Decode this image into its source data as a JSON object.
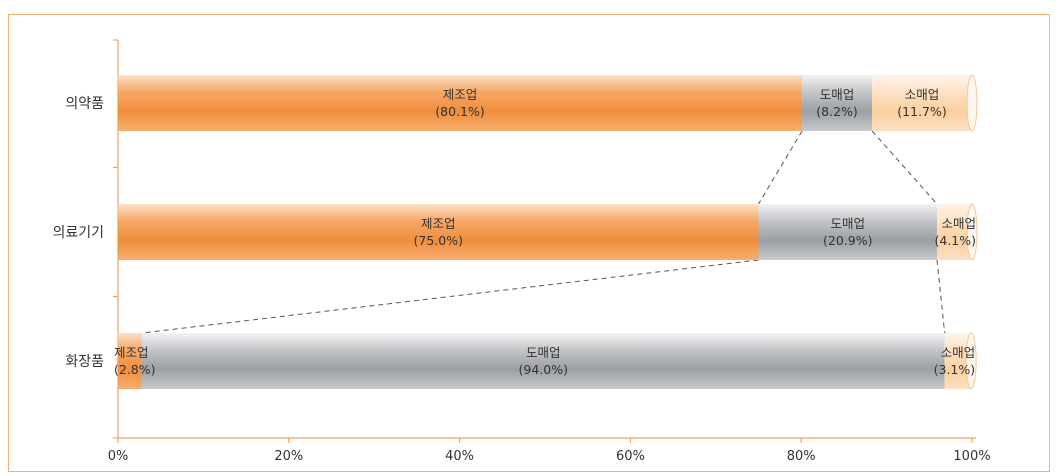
{
  "chart_data": {
    "type": "bar",
    "orientation": "horizontal",
    "stacked": true,
    "percent_stacked": true,
    "categories": [
      "의약품",
      "의료기기",
      "화장품"
    ],
    "series": [
      {
        "name": "제조업",
        "values": [
          80.1,
          75.0,
          2.8
        ],
        "labels": [
          "(80.1%)",
          "(75.0%)",
          "(2.8%)"
        ]
      },
      {
        "name": "도매업",
        "values": [
          8.2,
          20.9,
          94.0
        ],
        "labels": [
          "(8.2%)",
          "(20.9%)",
          "(94.0%)"
        ]
      },
      {
        "name": "소매업",
        "values": [
          11.7,
          4.1,
          3.1
        ],
        "labels": [
          "(11.7%)",
          "(4.1%)",
          "(3.1%)"
        ]
      }
    ],
    "xlim": [
      0,
      100
    ],
    "x_ticks": [
      0,
      20,
      40,
      60,
      80,
      100
    ],
    "x_tick_labels": [
      "0%",
      "20%",
      "40%",
      "60%",
      "80%",
      "100%"
    ],
    "legend": "none",
    "grid": false,
    "connector_lines": "dashed",
    "colors": {
      "제조업": "#f39a4c",
      "도매업": "#a7a9ac",
      "소매업": "#fbd3a8"
    }
  }
}
